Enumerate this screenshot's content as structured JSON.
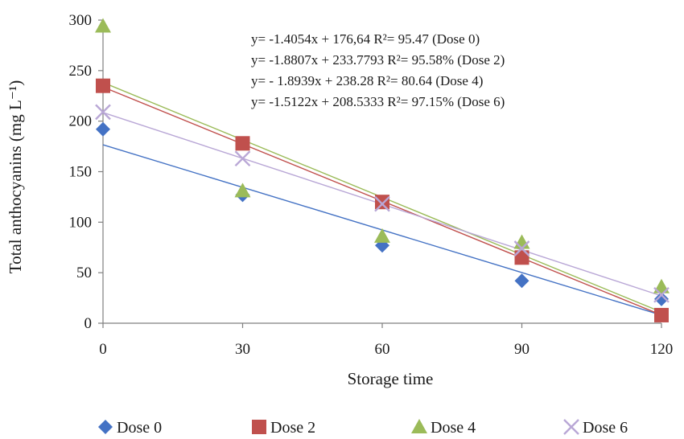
{
  "chart_data": {
    "type": "scatter",
    "title": "",
    "xlabel": "Storage time",
    "ylabel": "Total anthocyanins (mg L⁻¹)",
    "xlim": [
      0,
      120
    ],
    "ylim": [
      0,
      300
    ],
    "x_ticks": [
      "0",
      "30",
      "60",
      "90",
      "120"
    ],
    "y_ticks": [
      "0",
      "50",
      "100",
      "150",
      "200",
      "250",
      "300"
    ],
    "grid": false,
    "legend_position": "bottom",
    "x": [
      0,
      30,
      60,
      90,
      120
    ],
    "series": [
      {
        "name": "Dose 0",
        "marker": "diamond",
        "color": "#4472c4",
        "values": [
          192,
          127,
          77,
          42,
          24
        ],
        "trend": {
          "slope": -1.4054,
          "intercept": 176.64
        },
        "equation": "y= -1.4054x + 176,64 R²= 95.47  (Dose 0)"
      },
      {
        "name": "Dose 2",
        "marker": "square",
        "color": "#c0504d",
        "values": [
          235,
          178,
          120,
          65,
          8
        ],
        "trend": {
          "slope": -1.8807,
          "intercept": 233.7793
        },
        "equation": "y= -1.8807x + 233.7793 R²= 95.58% (Dose 2)"
      },
      {
        "name": "Dose 4",
        "marker": "triangle",
        "color": "#9bbb59",
        "values": [
          294,
          131,
          86,
          80,
          36
        ],
        "trend": {
          "slope": -1.8939,
          "intercept": 238.28
        },
        "equation": "y= - 1.8939x + 238.28 R²= 80.64 (Dose 4)"
      },
      {
        "name": "Dose 6",
        "marker": "x",
        "color": "#b9a7d6",
        "values": [
          209,
          163,
          118,
          74,
          28
        ],
        "trend": {
          "slope": -1.5122,
          "intercept": 208.5333
        },
        "equation": "y= -1.5122x + 208.5333 R²= 97.15% (Dose 6)"
      }
    ]
  }
}
